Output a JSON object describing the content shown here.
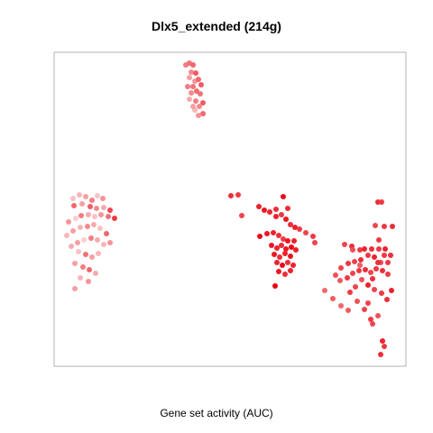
{
  "chart_data": {
    "type": "scatter",
    "title": "Dlx5_extended (214g)",
    "xlabel": "Gene set activity (AUC)",
    "ylabel": "",
    "grid": false,
    "legend": "none",
    "axis_ticks": "none",
    "xlim": [
      0,
      390
    ],
    "ylim": [
      0,
      348
    ],
    "color_scale": {
      "low": "#fce4e4",
      "high": "#e8000d"
    },
    "points": [
      {
        "x": 146,
        "y": 334,
        "auc": 0.45
      },
      {
        "x": 150,
        "y": 336,
        "auc": 0.5
      },
      {
        "x": 154,
        "y": 334,
        "auc": 0.55
      },
      {
        "x": 152,
        "y": 326,
        "auc": 0.4
      },
      {
        "x": 157,
        "y": 325,
        "auc": 0.6
      },
      {
        "x": 150,
        "y": 320,
        "auc": 0.3
      },
      {
        "x": 156,
        "y": 316,
        "auc": 0.35
      },
      {
        "x": 160,
        "y": 318,
        "auc": 0.55
      },
      {
        "x": 154,
        "y": 310,
        "auc": 0.5
      },
      {
        "x": 163,
        "y": 312,
        "auc": 0.6
      },
      {
        "x": 152,
        "y": 303,
        "auc": 0.4
      },
      {
        "x": 158,
        "y": 305,
        "auc": 0.55
      },
      {
        "x": 162,
        "y": 302,
        "auc": 0.5
      },
      {
        "x": 150,
        "y": 296,
        "auc": 0.25
      },
      {
        "x": 157,
        "y": 294,
        "auc": 0.45
      },
      {
        "x": 165,
        "y": 292,
        "auc": 0.6
      },
      {
        "x": 161,
        "y": 288,
        "auc": 0.4
      },
      {
        "x": 156,
        "y": 284,
        "auc": 0.2
      },
      {
        "x": 165,
        "y": 280,
        "auc": 0.55
      },
      {
        "x": 160,
        "y": 278,
        "auc": 0.35
      },
      {
        "x": 154,
        "y": 288,
        "auc": 0.3
      },
      {
        "x": 148,
        "y": 310,
        "auc": 0.45
      },
      {
        "x": 21,
        "y": 186,
        "auc": 0.15
      },
      {
        "x": 28,
        "y": 190,
        "auc": 0.2
      },
      {
        "x": 35,
        "y": 188,
        "auc": 0.3
      },
      {
        "x": 42,
        "y": 184,
        "auc": 0.45
      },
      {
        "x": 48,
        "y": 189,
        "auc": 0.15
      },
      {
        "x": 54,
        "y": 186,
        "auc": 0.35
      },
      {
        "x": 22,
        "y": 178,
        "auc": 0.55
      },
      {
        "x": 31,
        "y": 180,
        "auc": 0.3
      },
      {
        "x": 40,
        "y": 177,
        "auc": 0.6
      },
      {
        "x": 47,
        "y": 175,
        "auc": 0.4
      },
      {
        "x": 55,
        "y": 176,
        "auc": 0.25
      },
      {
        "x": 62,
        "y": 173,
        "auc": 0.7
      },
      {
        "x": 67,
        "y": 164,
        "auc": 0.75
      },
      {
        "x": 60,
        "y": 166,
        "auc": 0.5
      },
      {
        "x": 52,
        "y": 168,
        "auc": 0.35
      },
      {
        "x": 45,
        "y": 166,
        "auc": 0.15
      },
      {
        "x": 38,
        "y": 168,
        "auc": 0.25
      },
      {
        "x": 30,
        "y": 167,
        "auc": 0.45
      },
      {
        "x": 24,
        "y": 164,
        "auc": 0.1
      },
      {
        "x": 16,
        "y": 160,
        "auc": 0.35
      },
      {
        "x": 14,
        "y": 145,
        "auc": 0.2
      },
      {
        "x": 21,
        "y": 150,
        "auc": 0.3
      },
      {
        "x": 29,
        "y": 154,
        "auc": 0.2
      },
      {
        "x": 37,
        "y": 155,
        "auc": 0.4
      },
      {
        "x": 44,
        "y": 157,
        "auc": 0.25
      },
      {
        "x": 51,
        "y": 153,
        "auc": 0.15
      },
      {
        "x": 58,
        "y": 147,
        "auc": 0.55
      },
      {
        "x": 62,
        "y": 137,
        "auc": 0.35
      },
      {
        "x": 55,
        "y": 135,
        "auc": 0.2
      },
      {
        "x": 48,
        "y": 140,
        "auc": 0.25
      },
      {
        "x": 41,
        "y": 142,
        "auc": 0.45
      },
      {
        "x": 33,
        "y": 140,
        "auc": 0.1
      },
      {
        "x": 26,
        "y": 137,
        "auc": 0.3
      },
      {
        "x": 19,
        "y": 133,
        "auc": 0.25
      },
      {
        "x": 27,
        "y": 127,
        "auc": 0.15
      },
      {
        "x": 35,
        "y": 124,
        "auc": 0.5
      },
      {
        "x": 42,
        "y": 121,
        "auc": 0.3
      },
      {
        "x": 49,
        "y": 125,
        "auc": 0.2
      },
      {
        "x": 23,
        "y": 114,
        "auc": 0.3
      },
      {
        "x": 32,
        "y": 110,
        "auc": 0.45
      },
      {
        "x": 39,
        "y": 107,
        "auc": 0.55
      },
      {
        "x": 46,
        "y": 103,
        "auc": 0.25
      },
      {
        "x": 29,
        "y": 98,
        "auc": 0.2
      },
      {
        "x": 38,
        "y": 94,
        "auc": 0.35
      },
      {
        "x": 23,
        "y": 86,
        "auc": 0.3
      },
      {
        "x": 196,
        "y": 189,
        "auc": 0.8
      },
      {
        "x": 204,
        "y": 190,
        "auc": 0.75
      },
      {
        "x": 208,
        "y": 167,
        "auc": 0.7
      },
      {
        "x": 227,
        "y": 177,
        "auc": 0.85
      },
      {
        "x": 233,
        "y": 173,
        "auc": 0.9
      },
      {
        "x": 239,
        "y": 171,
        "auc": 0.85
      },
      {
        "x": 246,
        "y": 174,
        "auc": 0.8
      },
      {
        "x": 254,
        "y": 188,
        "auc": 0.95
      },
      {
        "x": 259,
        "y": 175,
        "auc": 0.8
      },
      {
        "x": 246,
        "y": 166,
        "auc": 0.85
      },
      {
        "x": 252,
        "y": 168,
        "auc": 0.75
      },
      {
        "x": 257,
        "y": 163,
        "auc": 0.9
      },
      {
        "x": 262,
        "y": 157,
        "auc": 0.8
      },
      {
        "x": 267,
        "y": 154,
        "auc": 0.85
      },
      {
        "x": 272,
        "y": 152,
        "auc": 0.75
      },
      {
        "x": 279,
        "y": 148,
        "auc": 0.7
      },
      {
        "x": 287,
        "y": 144,
        "auc": 0.75
      },
      {
        "x": 289,
        "y": 137,
        "auc": 0.7
      },
      {
        "x": 228,
        "y": 144,
        "auc": 0.95
      },
      {
        "x": 236,
        "y": 147,
        "auc": 0.9
      },
      {
        "x": 243,
        "y": 148,
        "auc": 0.85
      },
      {
        "x": 249,
        "y": 145,
        "auc": 0.8
      },
      {
        "x": 254,
        "y": 141,
        "auc": 0.75
      },
      {
        "x": 259,
        "y": 139,
        "auc": 0.9
      },
      {
        "x": 266,
        "y": 139,
        "auc": 0.85
      },
      {
        "x": 241,
        "y": 134,
        "auc": 0.9
      },
      {
        "x": 247,
        "y": 131,
        "auc": 0.85
      },
      {
        "x": 252,
        "y": 134,
        "auc": 0.8
      },
      {
        "x": 257,
        "y": 130,
        "auc": 0.9
      },
      {
        "x": 263,
        "y": 132,
        "auc": 0.95
      },
      {
        "x": 268,
        "y": 129,
        "auc": 0.85
      },
      {
        "x": 244,
        "y": 124,
        "auc": 0.9
      },
      {
        "x": 250,
        "y": 121,
        "auc": 0.8
      },
      {
        "x": 256,
        "y": 125,
        "auc": 0.85
      },
      {
        "x": 262,
        "y": 122,
        "auc": 0.9
      },
      {
        "x": 247,
        "y": 115,
        "auc": 0.85
      },
      {
        "x": 253,
        "y": 112,
        "auc": 0.95
      },
      {
        "x": 259,
        "y": 115,
        "auc": 0.8
      },
      {
        "x": 265,
        "y": 112,
        "auc": 0.85
      },
      {
        "x": 249,
        "y": 105,
        "auc": 0.9
      },
      {
        "x": 256,
        "y": 102,
        "auc": 0.8
      },
      {
        "x": 262,
        "y": 106,
        "auc": 0.85
      },
      {
        "x": 245,
        "y": 89,
        "auc": 1.0
      },
      {
        "x": 322,
        "y": 135,
        "auc": 0.7
      },
      {
        "x": 330,
        "y": 133,
        "auc": 0.8
      },
      {
        "x": 339,
        "y": 129,
        "auc": 0.75
      },
      {
        "x": 344,
        "y": 130,
        "auc": 0.85
      },
      {
        "x": 352,
        "y": 130,
        "auc": 0.8
      },
      {
        "x": 360,
        "y": 130,
        "auc": 0.75
      },
      {
        "x": 367,
        "y": 130,
        "auc": 0.85
      },
      {
        "x": 373,
        "y": 123,
        "auc": 0.8
      },
      {
        "x": 370,
        "y": 115,
        "auc": 0.75
      },
      {
        "x": 362,
        "y": 115,
        "auc": 0.7
      },
      {
        "x": 355,
        "y": 121,
        "auc": 0.85
      },
      {
        "x": 348,
        "y": 123,
        "auc": 0.75
      },
      {
        "x": 340,
        "y": 118,
        "auc": 0.8
      },
      {
        "x": 333,
        "y": 116,
        "auc": 0.7
      },
      {
        "x": 326,
        "y": 114,
        "auc": 0.75
      },
      {
        "x": 318,
        "y": 109,
        "auc": 0.7
      },
      {
        "x": 312,
        "y": 101,
        "auc": 0.65
      },
      {
        "x": 317,
        "y": 95,
        "auc": 0.6
      },
      {
        "x": 325,
        "y": 98,
        "auc": 0.75
      },
      {
        "x": 331,
        "y": 103,
        "auc": 0.7
      },
      {
        "x": 338,
        "y": 106,
        "auc": 0.75
      },
      {
        "x": 345,
        "y": 107,
        "auc": 0.8
      },
      {
        "x": 351,
        "y": 104,
        "auc": 0.7
      },
      {
        "x": 357,
        "y": 108,
        "auc": 0.75
      },
      {
        "x": 364,
        "y": 106,
        "auc": 0.8
      },
      {
        "x": 370,
        "y": 102,
        "auc": 0.75
      },
      {
        "x": 353,
        "y": 97,
        "auc": 0.8
      },
      {
        "x": 348,
        "y": 90,
        "auc": 0.85
      },
      {
        "x": 355,
        "y": 85,
        "auc": 0.7
      },
      {
        "x": 363,
        "y": 81,
        "auc": 0.75
      },
      {
        "x": 369,
        "y": 74,
        "auc": 0.8
      },
      {
        "x": 374,
        "y": 84,
        "auc": 0.85
      },
      {
        "x": 359,
        "y": 115,
        "auc": 0.8
      },
      {
        "x": 366,
        "y": 123,
        "auc": 0.75
      },
      {
        "x": 341,
        "y": 96,
        "auc": 0.65
      },
      {
        "x": 334,
        "y": 88,
        "auc": 0.7
      },
      {
        "x": 328,
        "y": 82,
        "auc": 0.75
      },
      {
        "x": 300,
        "y": 84,
        "auc": 0.55
      },
      {
        "x": 309,
        "y": 75,
        "auc": 0.6
      },
      {
        "x": 318,
        "y": 67,
        "auc": 0.55
      },
      {
        "x": 326,
        "y": 62,
        "auc": 0.6
      },
      {
        "x": 344,
        "y": 63,
        "auc": 0.7
      },
      {
        "x": 351,
        "y": 52,
        "auc": 0.75
      },
      {
        "x": 353,
        "y": 47,
        "auc": 0.7
      },
      {
        "x": 359,
        "y": 56,
        "auc": 0.65
      },
      {
        "x": 339,
        "y": 112,
        "auc": 0.6
      },
      {
        "x": 331,
        "y": 129,
        "auc": 0.65
      },
      {
        "x": 359,
        "y": 182,
        "auc": 0.8
      },
      {
        "x": 363,
        "y": 182,
        "auc": 0.75
      },
      {
        "x": 356,
        "y": 156,
        "auc": 0.7
      },
      {
        "x": 366,
        "y": 155,
        "auc": 0.75
      },
      {
        "x": 375,
        "y": 155,
        "auc": 0.8
      },
      {
        "x": 360,
        "y": 140,
        "auc": 0.75
      },
      {
        "x": 364,
        "y": 28,
        "auc": 0.85
      },
      {
        "x": 362,
        "y": 13,
        "auc": 0.8
      },
      {
        "x": 366,
        "y": 22,
        "auc": 0.75
      },
      {
        "x": 348,
        "y": 70,
        "auc": 0.7
      },
      {
        "x": 336,
        "y": 72,
        "auc": 0.65
      }
    ]
  }
}
